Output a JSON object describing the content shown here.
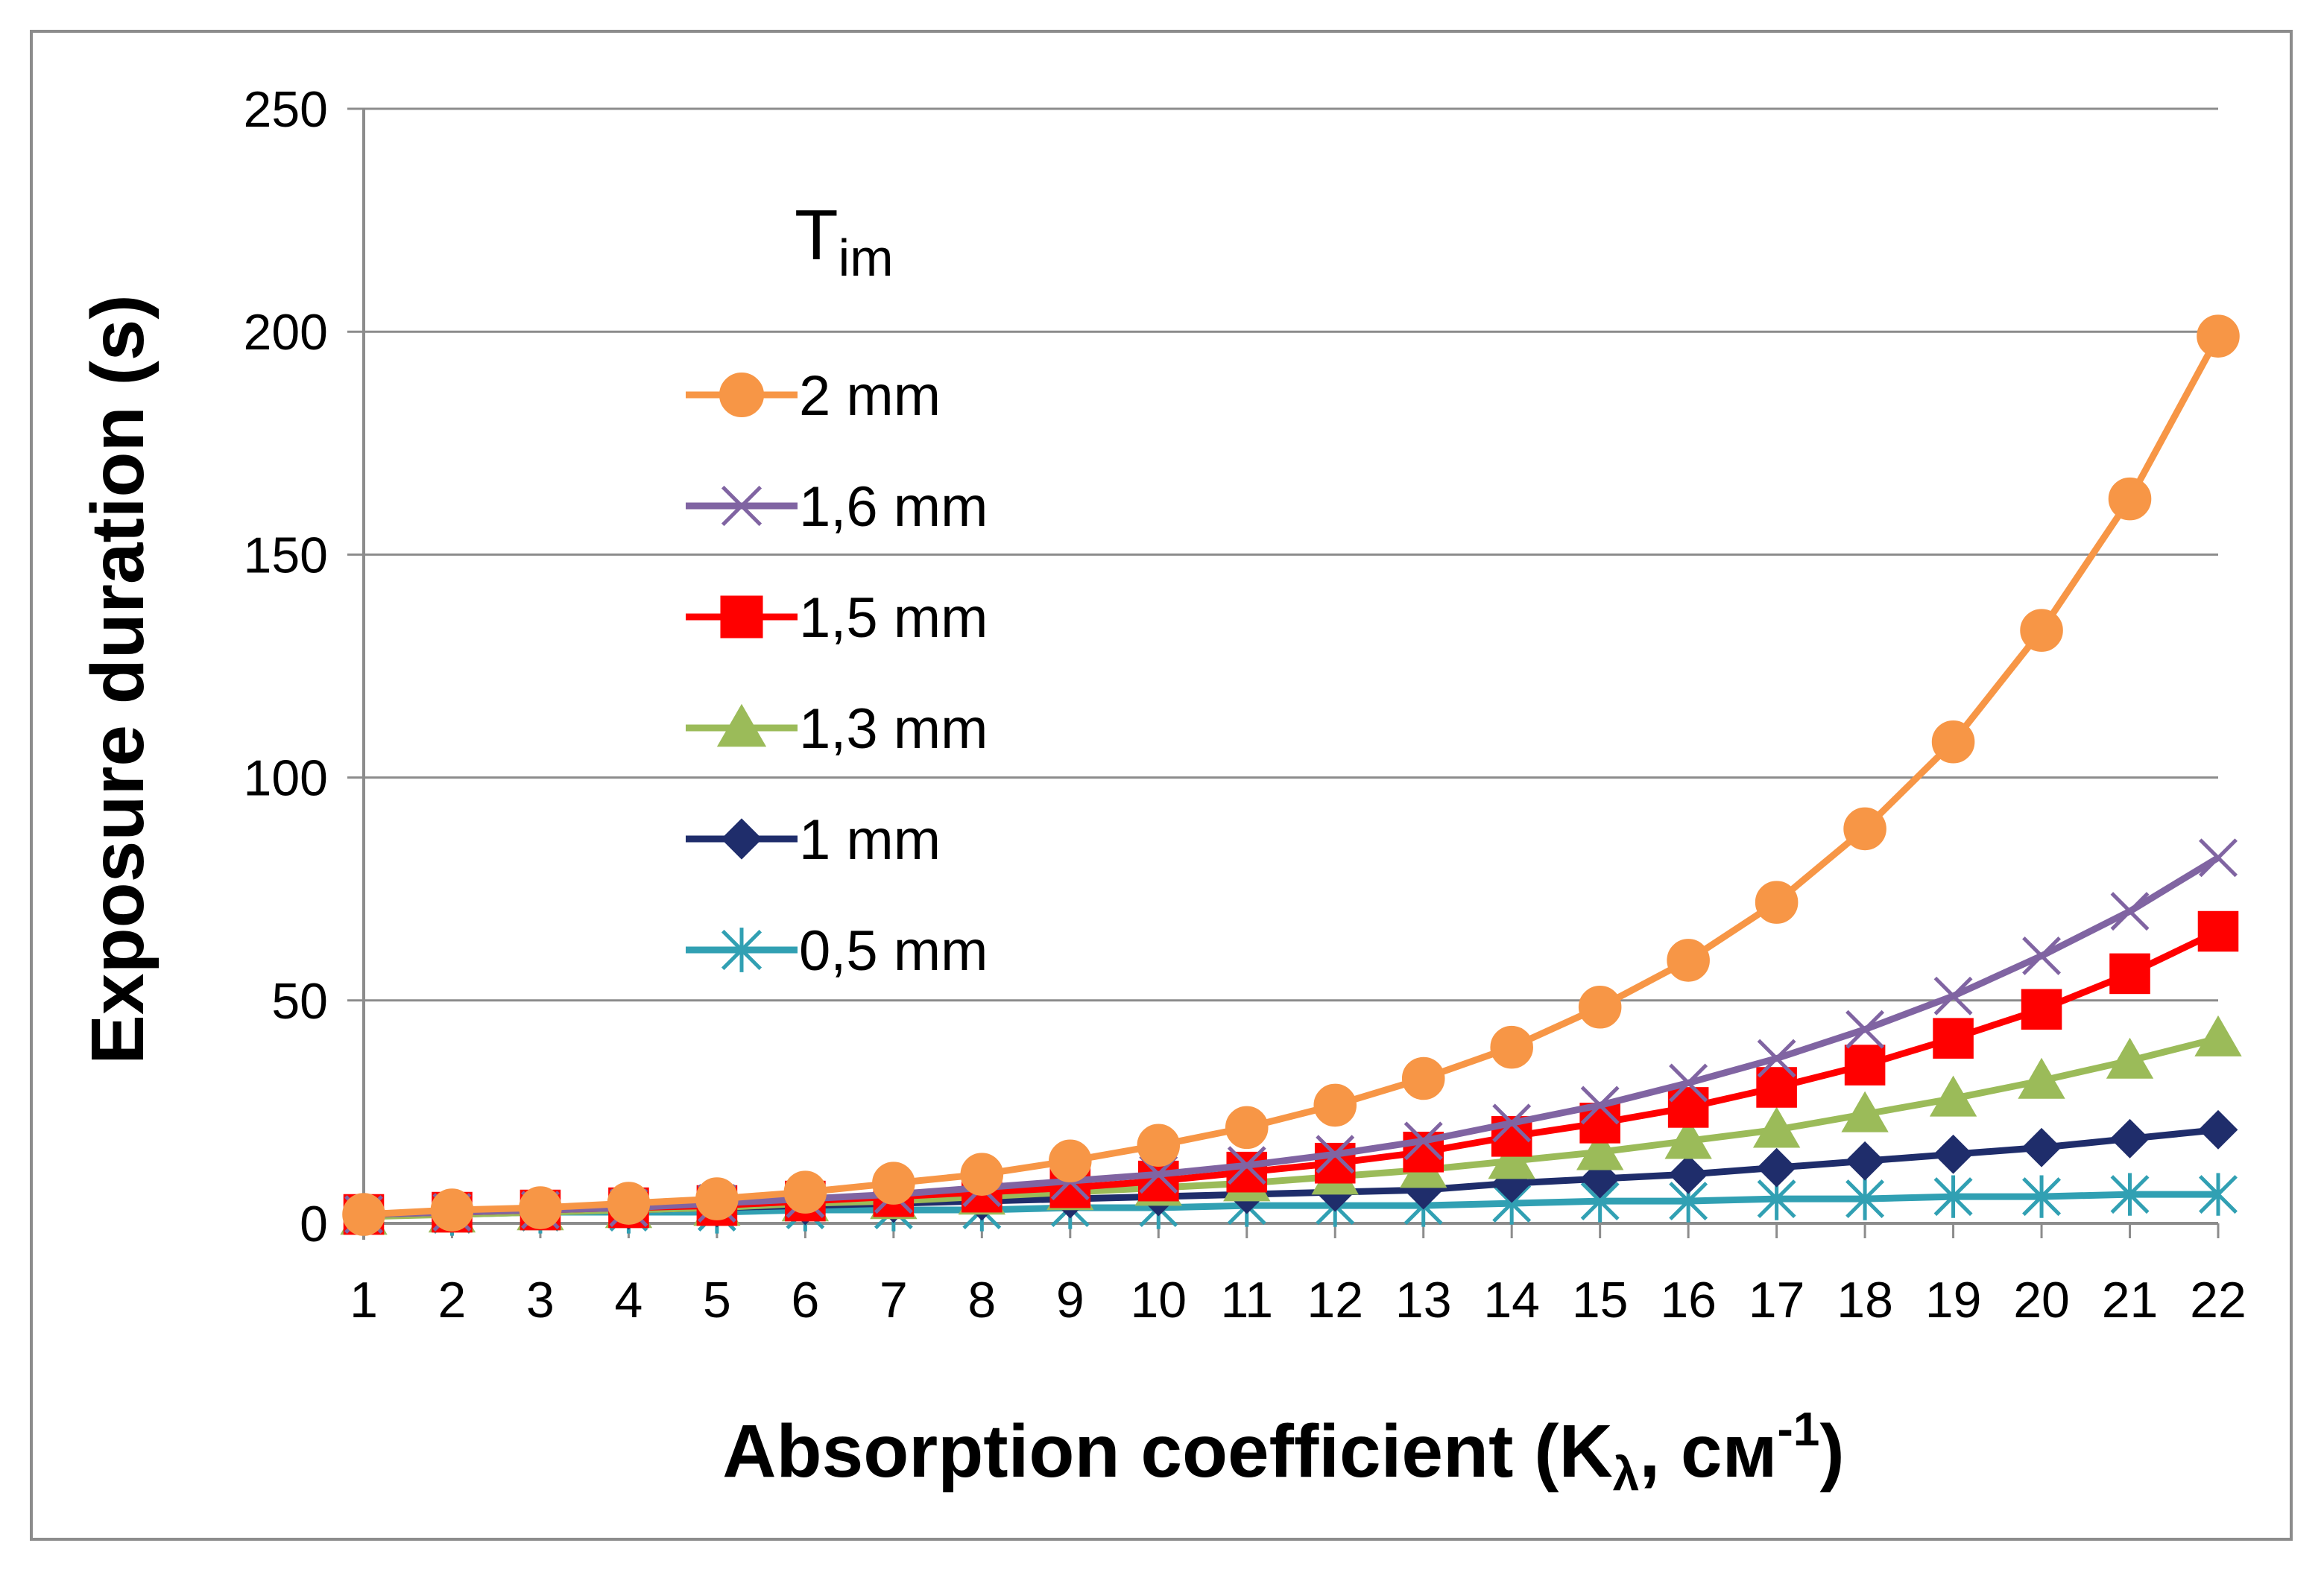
{
  "chart_data": {
    "type": "line",
    "title": "",
    "xlabel": "Absorption coefficient (K",
    "xlabel_sub": "λ",
    "xlabel_tail": ", см",
    "xlabel_sup": "-1",
    "xlabel_close": ")",
    "ylabel": "Exposure duration (s)",
    "ylim": [
      0,
      250
    ],
    "yticks": [
      0,
      50,
      100,
      150,
      200,
      250
    ],
    "categories": [
      1,
      2,
      3,
      4,
      5,
      6,
      7,
      8,
      9,
      10,
      11,
      12,
      13,
      14,
      15,
      16,
      17,
      18,
      19,
      20,
      21,
      22
    ],
    "grid": true,
    "legend_position": "top-left",
    "legend_title": "T",
    "legend_title_sub": "im",
    "series": [
      {
        "name": "2 mm",
        "color": "#f79646",
        "marker": "circle",
        "values": [
          2,
          3,
          3.5,
          4.5,
          5.5,
          7,
          9,
          11,
          14,
          17.5,
          21.5,
          26.5,
          32.5,
          39.5,
          48.5,
          59,
          72,
          88.5,
          108,
          133,
          162.5,
          199
        ]
      },
      {
        "name": "1,6 mm",
        "color": "#8064a2",
        "marker": "x",
        "values": [
          2,
          2.5,
          3,
          3.5,
          4.5,
          5.5,
          6.5,
          8,
          9.5,
          11,
          13,
          15.5,
          18.5,
          22.5,
          26.5,
          31.5,
          37,
          43.5,
          51,
          60,
          70,
          82
        ]
      },
      {
        "name": "1,5 mm",
        "color": "#ff0000",
        "marker": "square",
        "values": [
          2,
          2.5,
          3,
          3.5,
          4,
          5,
          6,
          7,
          8,
          9.5,
          11.5,
          13.5,
          16,
          19.5,
          22.5,
          26,
          30.5,
          35.5,
          41.5,
          48,
          56,
          65.5
        ]
      },
      {
        "name": "1,3 mm",
        "color": "#9bbb59",
        "marker": "triangle",
        "values": [
          1.5,
          2,
          2.5,
          3,
          3.5,
          4.5,
          5,
          6,
          7,
          8,
          9,
          10.5,
          12,
          14,
          16,
          18.5,
          21,
          24.5,
          28,
          32,
          36.5,
          41.5
        ]
      },
      {
        "name": "1 mm",
        "color": "#1f2d6b",
        "marker": "diamond",
        "values": [
          2,
          2.5,
          3,
          3,
          3.5,
          4,
          4.5,
          5,
          5.5,
          6,
          6.5,
          7,
          7.5,
          9,
          10,
          11,
          12.5,
          14,
          15.5,
          17,
          19,
          21
        ]
      },
      {
        "name": "0,5 mm",
        "color": "#31a0b3",
        "marker": "asterisk",
        "values": [
          2,
          2,
          2.5,
          2.5,
          2.5,
          3,
          3,
          3,
          3.5,
          3.5,
          4,
          4,
          4,
          4.5,
          5,
          5,
          5.5,
          5.5,
          6,
          6,
          6.5,
          6.5
        ]
      }
    ]
  }
}
